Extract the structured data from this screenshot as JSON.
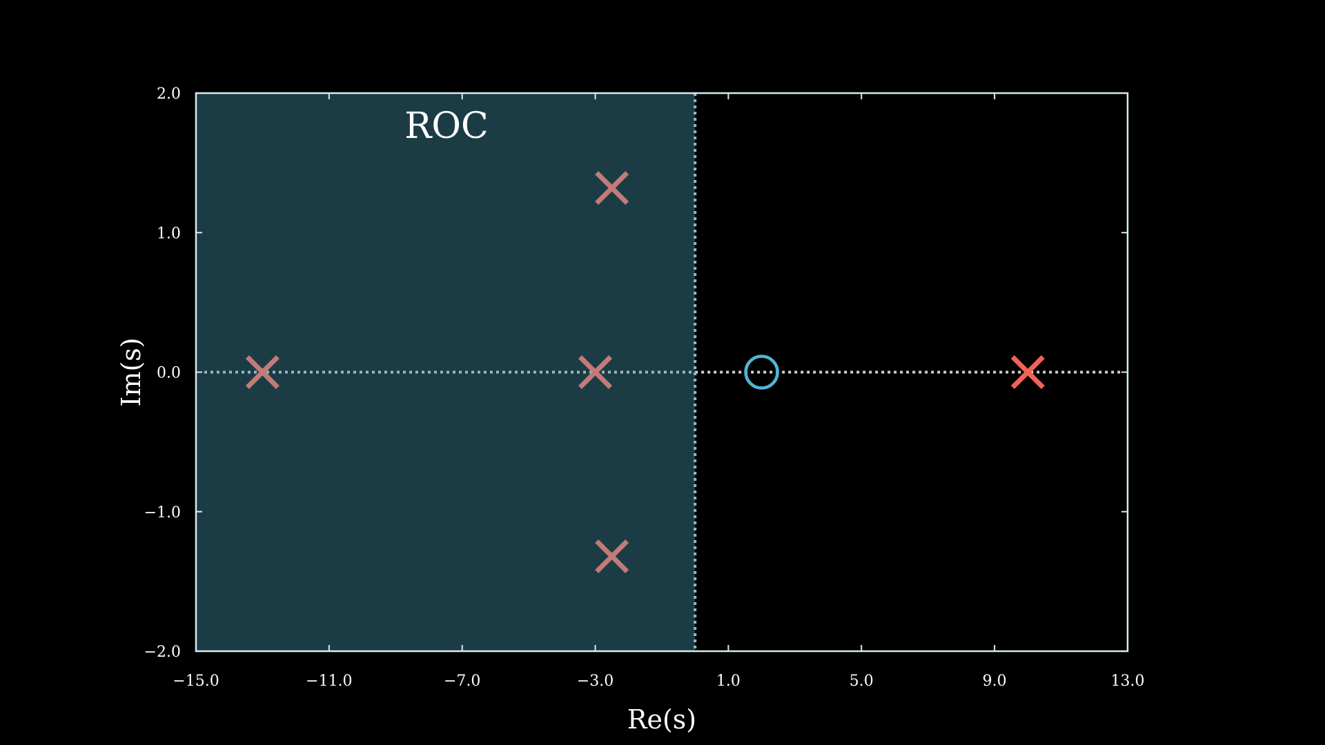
{
  "chart_data": {
    "type": "scatter",
    "title": "",
    "xlabel": "Re(s)",
    "ylabel": "Im(s)",
    "xlim": [
      -15.0,
      13.0
    ],
    "ylim": [
      -2.0,
      2.0
    ],
    "xticks": [
      "−15.0",
      "−11.0",
      "−7.0",
      "−3.0",
      "1.0",
      "5.0",
      "9.0",
      "13.0"
    ],
    "xtick_values": [
      -15,
      -11,
      -7,
      -3,
      1,
      5,
      9,
      13
    ],
    "yticks": [
      "2.0",
      "1.0",
      "0.0",
      "−1.0",
      "−2.0"
    ],
    "ytick_values": [
      2,
      1,
      0,
      -1,
      -2
    ],
    "grid": false,
    "roc": {
      "label": "ROC",
      "x_from": -15.0,
      "x_to": 0.0,
      "fill": "#1c3c45",
      "boundary_color": "#9ab8c4"
    },
    "real_axis_line": {
      "y": 0,
      "color": "#9ab8c4",
      "color_outside_roc": "#d0d0d0",
      "style": "dotted"
    },
    "poles": [
      {
        "x": -13.0,
        "y": 0.0,
        "color": "#c27b78"
      },
      {
        "x": -3.0,
        "y": 0.0,
        "color": "#c27b78"
      },
      {
        "x": -2.5,
        "y": 1.32,
        "color": "#c27b78"
      },
      {
        "x": -2.5,
        "y": -1.32,
        "color": "#c27b78"
      },
      {
        "x": 10.0,
        "y": 0.0,
        "color": "#f26355"
      }
    ],
    "zeros": [
      {
        "x": 2.0,
        "y": 0.0,
        "color": "#4fb6d6"
      }
    ],
    "colors": {
      "background": "#000000",
      "frame": "#d8ecf0",
      "text": "#ffffff"
    }
  }
}
